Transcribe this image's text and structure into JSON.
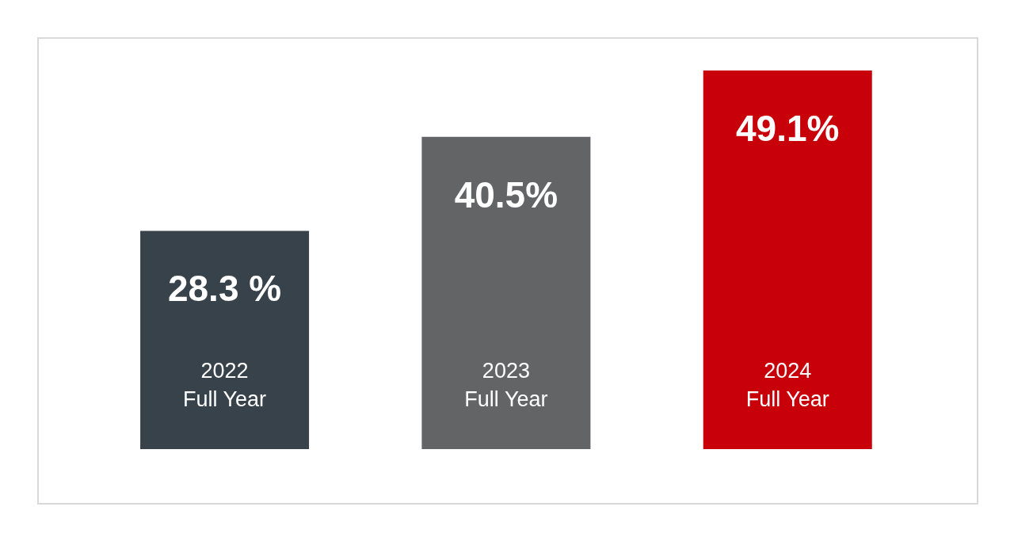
{
  "chart_data": {
    "type": "bar",
    "categories": [
      "2022 Full Year",
      "2023 Full Year",
      "2024 Full Year"
    ],
    "values": [
      28.3,
      40.5,
      49.1
    ],
    "colors": [
      "#37424a",
      "#636466",
      "#c8000a"
    ],
    "value_labels": [
      "28.3 %",
      "40.5%",
      "49.1%"
    ],
    "grid": false,
    "legend": false
  }
}
